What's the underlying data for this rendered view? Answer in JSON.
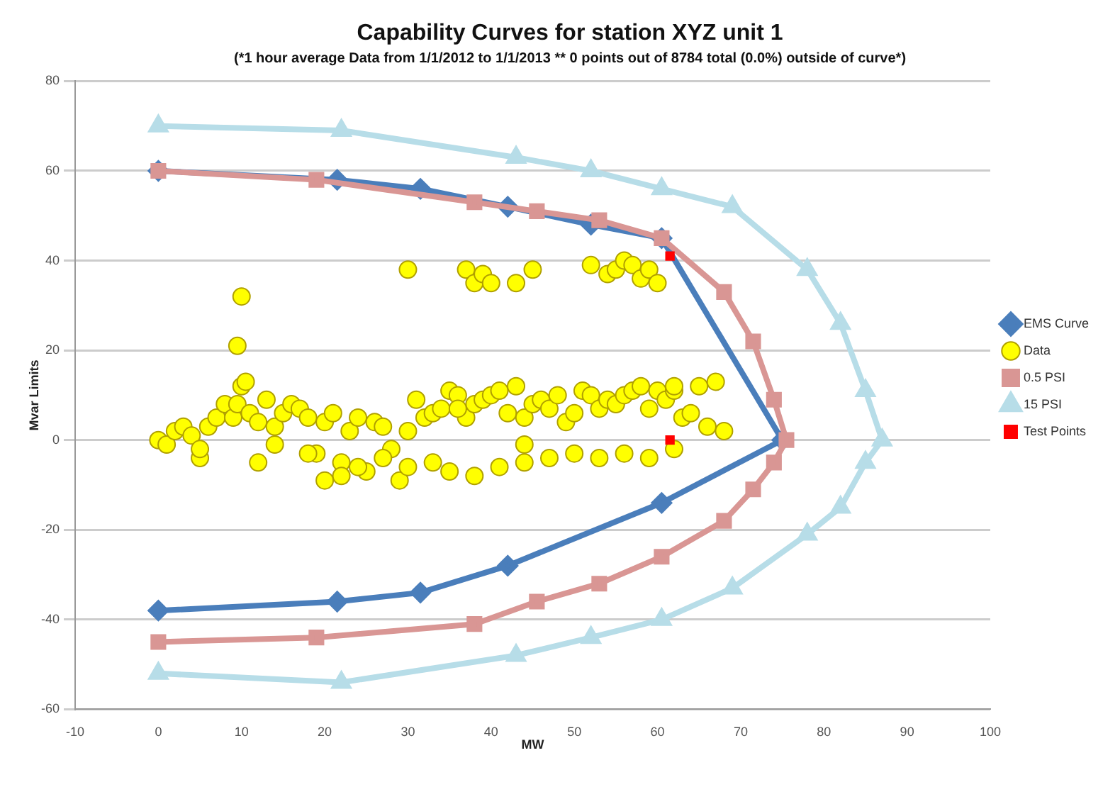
{
  "chart_data": {
    "type": "line",
    "title": "Capability Curves for station XYZ unit 1",
    "subtitle": "(*1 hour average Data from 1/1/2012 to 1/1/2013 ** 0 points out of 8784 total (0.0%) outside of curve*)",
    "xlabel": "MW",
    "ylabel": "Mvar Limits",
    "xlim": [
      -10,
      100
    ],
    "xticks": [
      -10,
      0,
      10,
      20,
      30,
      40,
      50,
      60,
      70,
      80,
      90,
      100
    ],
    "ylim": [
      -60,
      80
    ],
    "yticks": [
      -60,
      -40,
      -20,
      0,
      20,
      40,
      60,
      80
    ],
    "grid": "y",
    "legend": "right",
    "series": [
      {
        "name": "EMS Curve",
        "type": "line",
        "color": "#4a7ebb",
        "marker": "diamond",
        "x": [
          0,
          21.5,
          31.5,
          42,
          52,
          60.5,
          75,
          60.5,
          42,
          31.5,
          21.5,
          0
        ],
        "values": [
          60,
          58,
          56,
          52,
          48,
          45,
          0,
          -14,
          -28,
          -34,
          -36,
          -38
        ]
      },
      {
        "name": "Data",
        "type": "scatter",
        "color": "#ffff00",
        "marker": "circle",
        "x": [
          0,
          1,
          2,
          3,
          4,
          5,
          6,
          7,
          8,
          9,
          9.5,
          10,
          10.5,
          11,
          12,
          13,
          14,
          15,
          16,
          17,
          18,
          19,
          20,
          21,
          22,
          23,
          24,
          25,
          26,
          27,
          28,
          29,
          30,
          31,
          32,
          33,
          34,
          35,
          36,
          37,
          38,
          39,
          40,
          41,
          42,
          43,
          44,
          45,
          46,
          47,
          48,
          49,
          50,
          51,
          52,
          53,
          54,
          55,
          56,
          57,
          58,
          59,
          60,
          61,
          62,
          63,
          64,
          66,
          68,
          5,
          12,
          18,
          22,
          24,
          27,
          30,
          33,
          35,
          38,
          41,
          44,
          47,
          50,
          53,
          56,
          59,
          62,
          9.5,
          10,
          30,
          37,
          38,
          39,
          40,
          43,
          45,
          52,
          54,
          55,
          56,
          57,
          58,
          59,
          60,
          62,
          65,
          67,
          44,
          36,
          20,
          14
        ],
        "values": [
          0,
          -1,
          2,
          3,
          1,
          -4,
          3,
          5,
          8,
          5,
          8,
          12,
          13,
          6,
          4,
          9,
          3,
          6,
          8,
          7,
          5,
          -3,
          4,
          6,
          -5,
          2,
          5,
          -7,
          4,
          3,
          -2,
          -9,
          2,
          9,
          5,
          6,
          7,
          11,
          10,
          5,
          8,
          9,
          10,
          11,
          6,
          12,
          5,
          8,
          9,
          7,
          10,
          4,
          6,
          11,
          10,
          7,
          9,
          8,
          10,
          11,
          12,
          7,
          11,
          9,
          11,
          5,
          6,
          3,
          2,
          -2,
          -5,
          -3,
          -8,
          -6,
          -4,
          -6,
          -5,
          -7,
          -8,
          -6,
          -5,
          -4,
          -3,
          -4,
          -3,
          -4,
          -2,
          21,
          32,
          38,
          38,
          35,
          37,
          35,
          35,
          38,
          39,
          37,
          38,
          40,
          39,
          36,
          38,
          35,
          12,
          12,
          13,
          -1,
          7,
          -9,
          -1
        ]
      },
      {
        "name": "0.5 PSI",
        "type": "line",
        "color": "#d99694",
        "marker": "square",
        "x": [
          0,
          19,
          38,
          45.5,
          53,
          60.5,
          68,
          71.5,
          74,
          75.5,
          74,
          71.5,
          68,
          60.5,
          53,
          45.5,
          38,
          19,
          0
        ],
        "values": [
          60,
          58,
          53,
          51,
          49,
          45,
          33,
          22,
          9,
          0,
          -5,
          -11,
          -18,
          -26,
          -32,
          -36,
          -41,
          -44,
          -45
        ]
      },
      {
        "name": "15 PSI",
        "type": "line",
        "color": "#b7dde8",
        "marker": "triangle",
        "x": [
          0,
          22,
          43,
          52,
          60.5,
          69,
          78,
          82,
          85,
          87,
          85,
          82,
          78,
          69,
          60.5,
          52,
          43,
          22,
          0
        ],
        "values": [
          70,
          69,
          63,
          60,
          56,
          52,
          38,
          26,
          11,
          0,
          -5,
          -15,
          -21,
          -33,
          -40,
          -44,
          -48,
          -54,
          -52
        ]
      },
      {
        "name": "Test Points",
        "type": "scatter",
        "color": "#ff0000",
        "marker": "square",
        "x": [
          61.5,
          61.5
        ],
        "values": [
          41,
          0
        ]
      }
    ]
  }
}
